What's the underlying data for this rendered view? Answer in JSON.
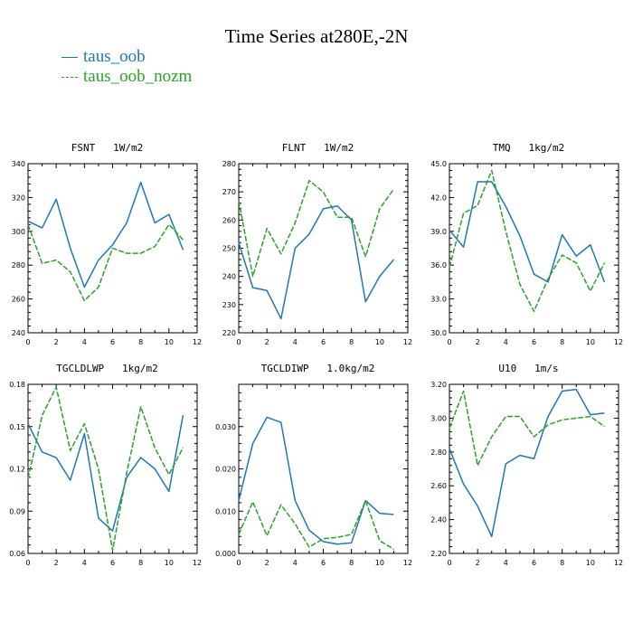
{
  "title": "Time Series at280E,-2N",
  "legend": {
    "series1": {
      "label": "taus_oob",
      "color": "#1f77b4"
    },
    "series2": {
      "label": "taus_oob_nozm",
      "color": "#2ca02c"
    }
  },
  "chart_data": [
    {
      "type": "line",
      "title": "FSNT   1W/m2",
      "x": [
        0,
        1,
        2,
        3,
        4,
        5,
        6,
        7,
        8,
        9,
        10,
        11
      ],
      "xlim": [
        0,
        12
      ],
      "xticks": [
        "0",
        "2",
        "4",
        "6",
        "8",
        "10",
        "12"
      ],
      "ylim": [
        240,
        340
      ],
      "yticks": [
        "240",
        "260",
        "280",
        "300",
        "320",
        "340"
      ],
      "series": [
        {
          "name": "taus_oob",
          "values": [
            306,
            302,
            319,
            290,
            267,
            283,
            292,
            305,
            329,
            305,
            310,
            289
          ]
        },
        {
          "name": "taus_oob_nozm",
          "values": [
            304,
            281,
            283,
            276,
            259,
            267,
            290,
            287,
            287,
            291,
            304,
            295
          ]
        }
      ]
    },
    {
      "type": "line",
      "title": "FLNT   1W/m2",
      "x": [
        0,
        1,
        2,
        3,
        4,
        5,
        6,
        7,
        8,
        9,
        10,
        11
      ],
      "xlim": [
        0,
        12
      ],
      "xticks": [
        "0",
        "2",
        "4",
        "6",
        "8",
        "10",
        "12"
      ],
      "ylim": [
        220,
        280
      ],
      "yticks": [
        "220",
        "230",
        "240",
        "250",
        "260",
        "270",
        "280"
      ],
      "series": [
        {
          "name": "taus_oob",
          "values": [
            252,
            236,
            235,
            225,
            250,
            255,
            264,
            265,
            260,
            231,
            240,
            246
          ]
        },
        {
          "name": "taus_oob_nozm",
          "values": [
            267,
            240,
            257,
            248,
            259,
            274,
            270,
            261,
            261,
            247,
            264,
            271
          ]
        }
      ]
    },
    {
      "type": "line",
      "title": "TMQ   1kg/m2",
      "x": [
        0,
        1,
        2,
        3,
        4,
        5,
        6,
        7,
        8,
        9,
        10,
        11
      ],
      "xlim": [
        0,
        12
      ],
      "xticks": [
        "0",
        "2",
        "4",
        "6",
        "8",
        "10",
        "12"
      ],
      "ylim": [
        30,
        45
      ],
      "yticks": [
        "30.0",
        "33.0",
        "36.0",
        "39.0",
        "42.0",
        "45.0"
      ],
      "series": [
        {
          "name": "taus_oob",
          "values": [
            39.1,
            37.6,
            43.4,
            43.4,
            41.2,
            38.6,
            35.2,
            34.5,
            38.7,
            36.8,
            37.8,
            34.5
          ]
        },
        {
          "name": "taus_oob_nozm",
          "values": [
            35.8,
            40.6,
            41.3,
            44.4,
            39.0,
            34.3,
            31.9,
            34.8,
            36.9,
            36.2,
            33.7,
            36.2
          ]
        }
      ]
    },
    {
      "type": "line",
      "title": "TGCLDLWP   1kg/m2",
      "x": [
        0,
        1,
        2,
        3,
        4,
        5,
        6,
        7,
        8,
        9,
        10,
        11
      ],
      "xlim": [
        0,
        12
      ],
      "xticks": [
        "0",
        "2",
        "4",
        "6",
        "8",
        "10",
        "12"
      ],
      "ylim": [
        0.06,
        0.18
      ],
      "yticks": [
        "0.06",
        "0.09",
        "0.12",
        "0.15",
        "0.18"
      ],
      "series": [
        {
          "name": "taus_oob",
          "values": [
            0.152,
            0.132,
            0.128,
            0.112,
            0.145,
            0.085,
            0.076,
            0.114,
            0.128,
            0.12,
            0.104,
            0.158
          ]
        },
        {
          "name": "taus_oob_nozm",
          "values": [
            0.113,
            0.158,
            0.178,
            0.133,
            0.152,
            0.12,
            0.062,
            0.117,
            0.164,
            0.135,
            0.116,
            0.135
          ]
        }
      ]
    },
    {
      "type": "line",
      "title": "TGCLDIWP   1.0kg/m2",
      "x": [
        0,
        1,
        2,
        3,
        4,
        5,
        6,
        7,
        8,
        9,
        10,
        11
      ],
      "xlim": [
        0,
        12
      ],
      "xticks": [
        "0",
        "2",
        "4",
        "6",
        "8",
        "10",
        "12"
      ],
      "ylim": [
        0,
        0.04
      ],
      "yticks": [
        "0.000",
        "0.010",
        "0.020",
        "0.030"
      ],
      "series": [
        {
          "name": "taus_oob",
          "values": [
            0.0125,
            0.026,
            0.0322,
            0.031,
            0.0125,
            0.0055,
            0.0028,
            0.0022,
            0.0025,
            0.0125,
            0.0095,
            0.0092
          ]
        },
        {
          "name": "taus_oob_nozm",
          "values": [
            0.0045,
            0.0122,
            0.0042,
            0.0115,
            0.007,
            0.0015,
            0.0035,
            0.0038,
            0.0045,
            0.0125,
            0.003,
            0.001
          ]
        }
      ]
    },
    {
      "type": "line",
      "title": "U10   1m/s",
      "x": [
        0,
        1,
        2,
        3,
        4,
        5,
        6,
        7,
        8,
        9,
        10,
        11
      ],
      "xlim": [
        0,
        12
      ],
      "xticks": [
        "0",
        "2",
        "4",
        "6",
        "8",
        "10",
        "12"
      ],
      "ylim": [
        2.2,
        3.2
      ],
      "yticks": [
        "2.20",
        "2.40",
        "2.60",
        "2.80",
        "3.00",
        "3.20"
      ],
      "series": [
        {
          "name": "taus_oob",
          "values": [
            2.82,
            2.61,
            2.48,
            2.3,
            2.73,
            2.78,
            2.76,
            3.01,
            3.16,
            3.17,
            3.02,
            3.03
          ]
        },
        {
          "name": "taus_oob_nozm",
          "values": [
            2.94,
            3.16,
            2.72,
            2.89,
            3.01,
            3.01,
            2.89,
            2.96,
            2.99,
            3.0,
            3.01,
            2.95
          ]
        }
      ]
    }
  ]
}
